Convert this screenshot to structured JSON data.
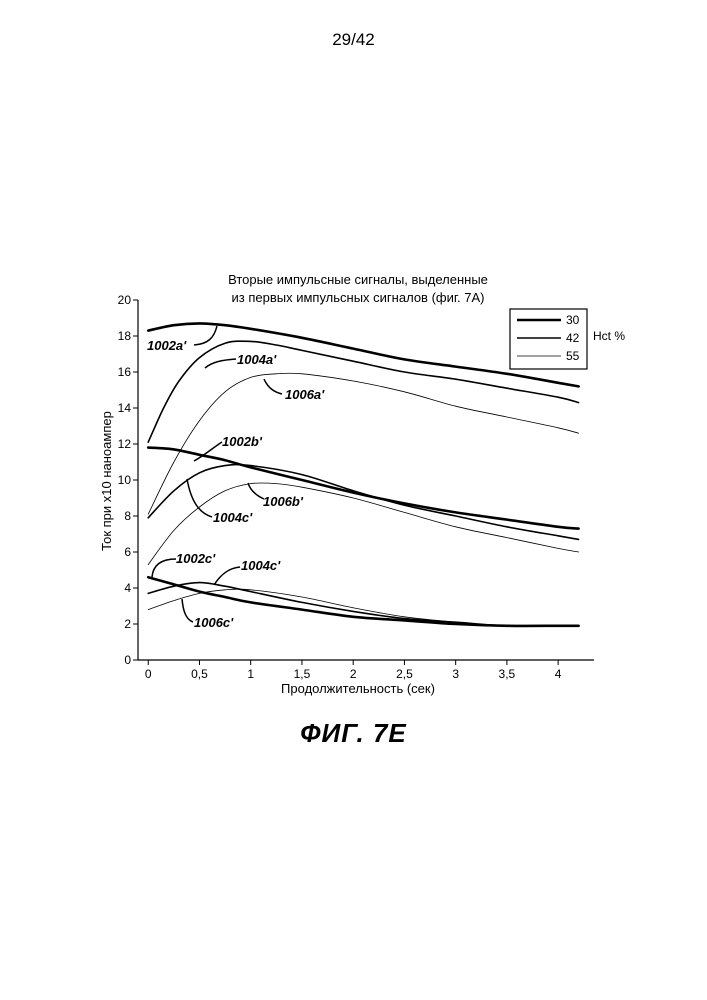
{
  "page": {
    "number": "29/42",
    "caption": "ФИГ. 7E"
  },
  "chart_data": {
    "type": "line",
    "title": "Вторые импульсные сигналы, выделенные",
    "subtitle": "из первых импульсных сигналов (фиг. 7A)",
    "xlabel": "Продолжительность (сек)",
    "ylabel": "Ток при x10 наноампер",
    "xlim": [
      -0.1,
      4.35
    ],
    "ylim": [
      0,
      20
    ],
    "x_ticks": [
      0,
      0.5,
      1,
      1.5,
      2,
      2.5,
      3,
      3.5,
      4
    ],
    "x_tick_labels": [
      "0",
      "0,5",
      "1",
      "1,5",
      "2",
      "2,5",
      "3",
      "3,5",
      "4"
    ],
    "y_ticks": [
      0,
      2,
      4,
      6,
      8,
      10,
      12,
      14,
      16,
      18,
      20
    ],
    "y_tick_labels": [
      "0",
      "2",
      "4",
      "6",
      "8",
      "10",
      "12",
      "14",
      "16",
      "18",
      "20"
    ],
    "grid": false,
    "legend": {
      "title": "Hct %",
      "placement": "top-right",
      "entries": [
        "30",
        "42",
        "55"
      ]
    },
    "series": [
      {
        "group": "a",
        "hct": "30",
        "label": "1002a'",
        "x": [
          0,
          0.25,
          0.5,
          0.75,
          1,
          1.5,
          2,
          2.5,
          3,
          3.5,
          4,
          4.2
        ],
        "y": [
          18.3,
          18.6,
          18.7,
          18.6,
          18.4,
          17.9,
          17.3,
          16.7,
          16.3,
          15.9,
          15.4,
          15.2
        ]
      },
      {
        "group": "a",
        "hct": "42",
        "label": "1004a'",
        "x": [
          0,
          0.15,
          0.3,
          0.5,
          0.75,
          1,
          1.25,
          1.5,
          2,
          2.5,
          3,
          3.5,
          4,
          4.2
        ],
        "y": [
          12.1,
          14.0,
          15.5,
          16.8,
          17.6,
          17.7,
          17.5,
          17.2,
          16.6,
          16.0,
          15.6,
          15.1,
          14.6,
          14.3
        ]
      },
      {
        "group": "a",
        "hct": "55",
        "label": "1006a'",
        "x": [
          0,
          0.25,
          0.5,
          0.75,
          1,
          1.25,
          1.5,
          2,
          2.5,
          3,
          3.5,
          4,
          4.2
        ],
        "y": [
          8.1,
          11.0,
          13.3,
          14.9,
          15.7,
          15.9,
          15.9,
          15.5,
          14.9,
          14.1,
          13.5,
          12.9,
          12.6
        ]
      },
      {
        "group": "b",
        "hct": "30",
        "label": "1002b'",
        "x": [
          0,
          0.25,
          0.5,
          0.75,
          1,
          1.5,
          2,
          2.5,
          3,
          3.5,
          4,
          4.2
        ],
        "y": [
          11.8,
          11.7,
          11.4,
          11.1,
          10.7,
          10.0,
          9.3,
          8.7,
          8.2,
          7.8,
          7.4,
          7.3
        ]
      },
      {
        "group": "b",
        "hct": "42",
        "label": "1004c'",
        "x": [
          0,
          0.25,
          0.5,
          0.75,
          1,
          1.5,
          2,
          2.5,
          3,
          3.5,
          4,
          4.2
        ],
        "y": [
          7.9,
          9.4,
          10.4,
          10.8,
          10.8,
          10.3,
          9.4,
          8.6,
          8.0,
          7.4,
          6.9,
          6.7
        ]
      },
      {
        "group": "b",
        "hct": "55",
        "label": "1006b'",
        "x": [
          0,
          0.25,
          0.5,
          0.75,
          1,
          1.25,
          1.5,
          2,
          2.5,
          3,
          3.5,
          4,
          4.2
        ],
        "y": [
          5.3,
          7.2,
          8.5,
          9.4,
          9.8,
          9.8,
          9.6,
          9.0,
          8.2,
          7.4,
          6.8,
          6.2,
          6.0
        ]
      },
      {
        "group": "c",
        "hct": "30",
        "label": "1002c'",
        "x": [
          0,
          0.25,
          0.5,
          0.75,
          1,
          1.5,
          2,
          2.5,
          3,
          3.5,
          4,
          4.2
        ],
        "y": [
          4.6,
          4.2,
          3.8,
          3.5,
          3.2,
          2.8,
          2.4,
          2.2,
          2.0,
          1.9,
          1.9,
          1.9
        ]
      },
      {
        "group": "c",
        "hct": "42",
        "label": "1004c'",
        "x": [
          0,
          0.25,
          0.5,
          0.75,
          1,
          1.5,
          2,
          2.5,
          3,
          3.5,
          4,
          4.2
        ],
        "y": [
          3.7,
          4.1,
          4.3,
          4.1,
          3.8,
          3.2,
          2.7,
          2.3,
          2.1,
          1.9,
          1.9,
          1.9
        ]
      },
      {
        "group": "c",
        "hct": "55",
        "label": "1006c'",
        "x": [
          0,
          0.25,
          0.5,
          0.75,
          1,
          1.5,
          2,
          2.5,
          3,
          3.5,
          4,
          4.2
        ],
        "y": [
          2.8,
          3.3,
          3.7,
          3.9,
          3.9,
          3.5,
          2.9,
          2.4,
          2.1,
          1.9,
          1.9,
          1.9
        ]
      }
    ],
    "annotations": [
      "1002a'",
      "1004a'",
      "1006a'",
      "1002b'",
      "1004c'",
      "1006b'",
      "1002c'",
      "1004c'",
      "1006c'"
    ],
    "colors": {
      "line": "#000000",
      "background": "#ffffff"
    }
  }
}
